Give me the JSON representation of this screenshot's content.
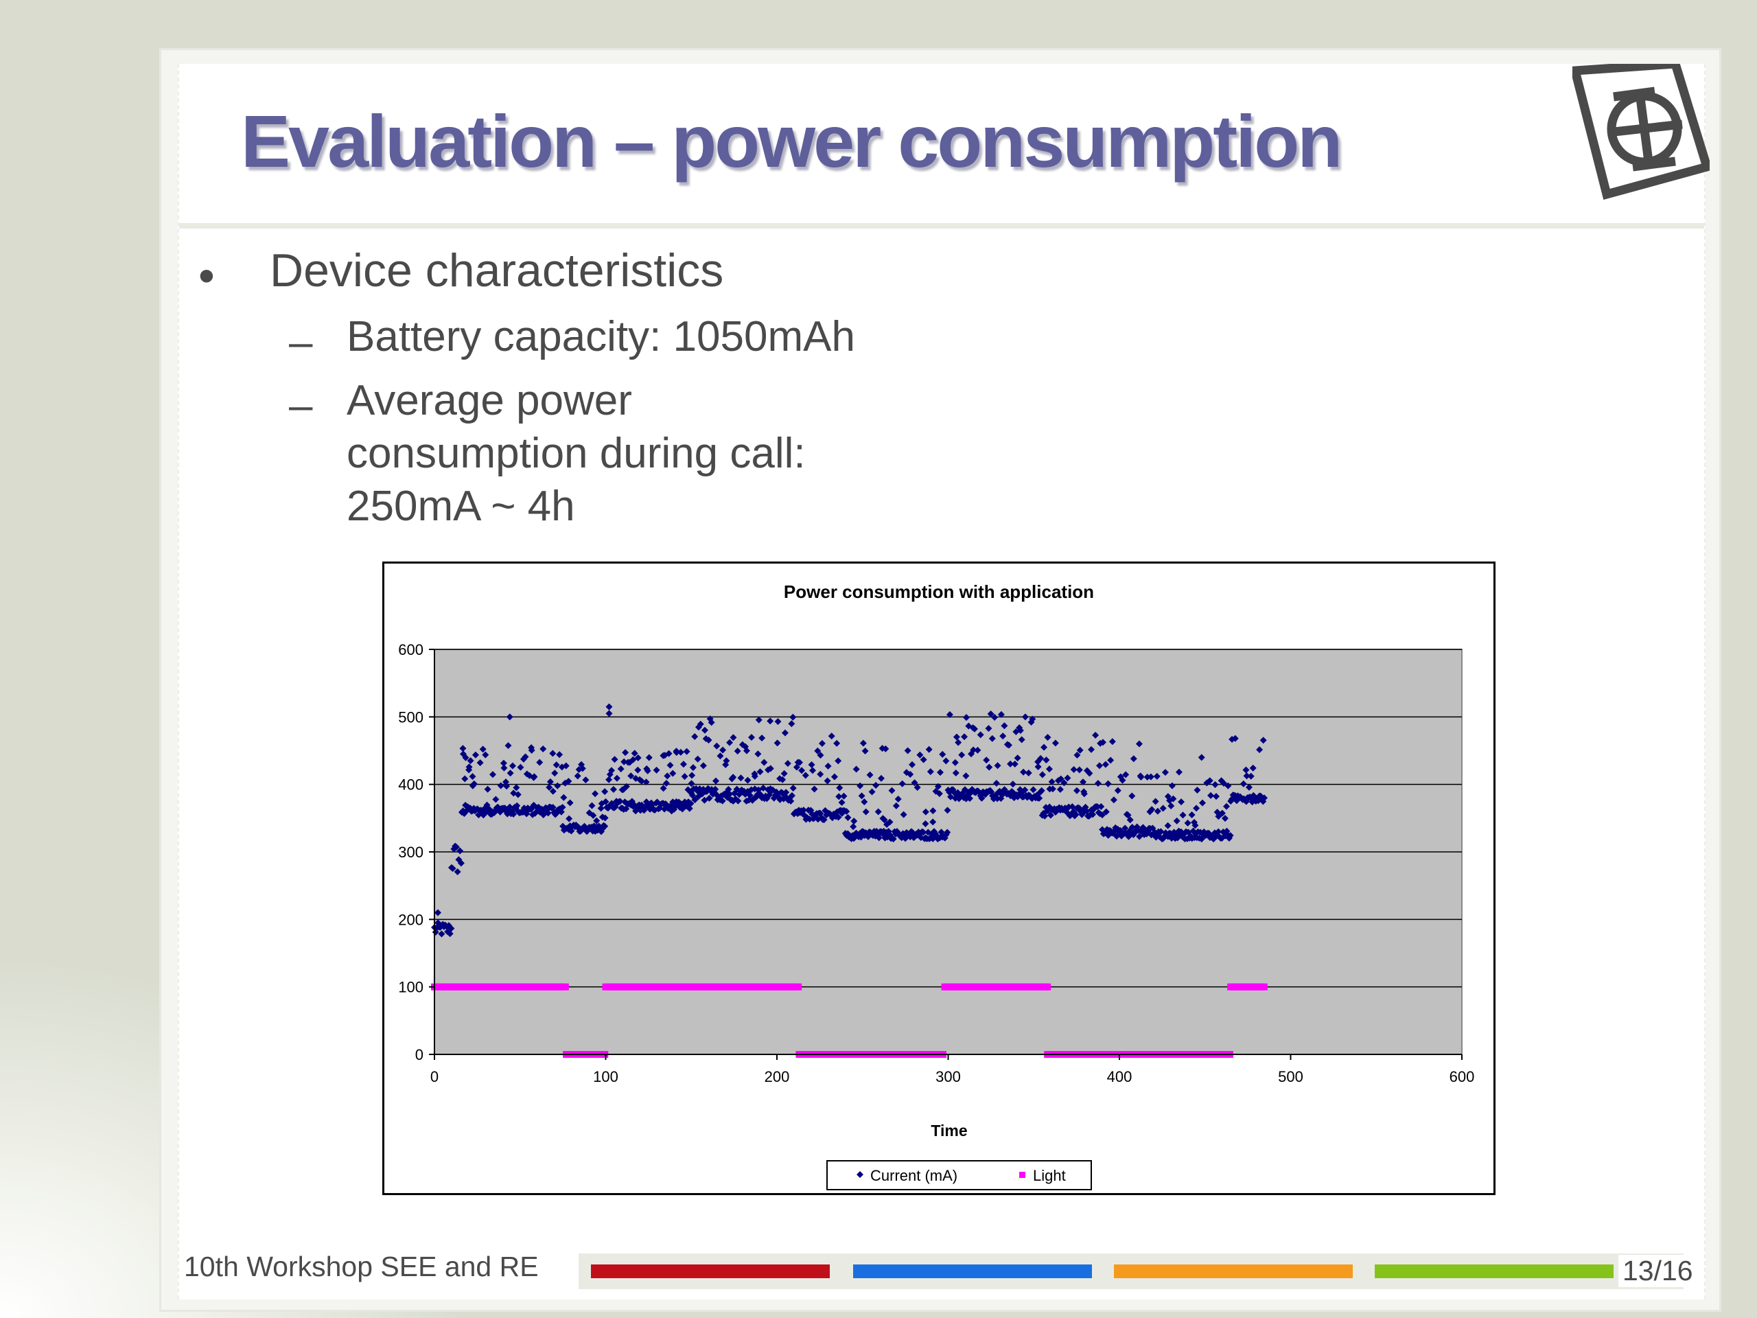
{
  "slide": {
    "title": "Evaluation – power consumption",
    "logo_icon": "institute-logo-icon",
    "bullets": {
      "level1": {
        "marker": "•",
        "text": "Device characteristics"
      },
      "items": [
        {
          "marker": "–",
          "lines": [
            "Battery capacity: 1050mAh"
          ]
        },
        {
          "marker": "–",
          "lines": [
            "Average power",
            "consumption during call:",
            "250mA ~ 4h"
          ]
        }
      ]
    },
    "footer": {
      "text": "10th Workshop SEE and RE",
      "page": "13/16",
      "stripe_colors": [
        "#c00f1b",
        "#1a6fe0",
        "#f59a1c",
        "#86c31a"
      ]
    }
  },
  "chart_data": {
    "type": "scatter",
    "title": "Power consumption with application",
    "xlabel": "Time",
    "ylabel": "",
    "xlim": [
      0,
      600
    ],
    "ylim": [
      0,
      600
    ],
    "xticks": [
      0,
      100,
      200,
      300,
      400,
      500,
      600
    ],
    "yticks": [
      0,
      100,
      200,
      300,
      400,
      500,
      600
    ],
    "grid": "horizontal",
    "plot_background": "#c0c0c0",
    "legend": {
      "placement": "bottom-center",
      "entries": [
        "Current (mA)",
        "Light"
      ]
    },
    "series": [
      {
        "name": "Current (mA)",
        "color": "#000080",
        "marker": "diamond",
        "segments": [
          {
            "x": [
              0,
              10
            ],
            "base": 185,
            "spread": 20
          },
          {
            "x": [
              10,
              16
            ],
            "base": 290,
            "spread": 50
          },
          {
            "x": [
              16,
              75
            ],
            "base": 362,
            "spread": 15,
            "upper": 460
          },
          {
            "x": [
              75,
              100
            ],
            "base": 335,
            "spread": 10,
            "upper": 430
          },
          {
            "x": [
              100,
              150
            ],
            "base": 368,
            "spread": 15,
            "upper": 450
          },
          {
            "x": [
              150,
              210
            ],
            "base": 385,
            "spread": 20,
            "upper": 500
          },
          {
            "x": [
              210,
              240
            ],
            "base": 355,
            "spread": 15,
            "upper": 480
          },
          {
            "x": [
              240,
              300
            ],
            "base": 325,
            "spread": 12,
            "upper": 465
          },
          {
            "x": [
              300,
              355
            ],
            "base": 385,
            "spread": 15,
            "upper": 505
          },
          {
            "x": [
              355,
              390
            ],
            "base": 360,
            "spread": 15,
            "upper": 480
          },
          {
            "x": [
              390,
              420
            ],
            "base": 330,
            "spread": 15,
            "upper": 470
          },
          {
            "x": [
              420,
              465
            ],
            "base": 325,
            "spread": 12,
            "upper": 420
          },
          {
            "x": [
              465,
              485
            ],
            "base": 380,
            "spread": 12,
            "upper": 470
          }
        ],
        "outliers": [
          [
            44,
            500
          ],
          [
            102,
            505
          ],
          [
            102,
            515
          ],
          [
            448,
            440
          ],
          [
            2,
            210
          ]
        ]
      },
      {
        "name": "Light",
        "color": "#ff00ff",
        "marker": "square",
        "segments": [
          {
            "x": [
              0,
              77
            ],
            "y": 100
          },
          {
            "x": [
              77,
              100
            ],
            "y": 0
          },
          {
            "x": [
              100,
              213
            ],
            "y": 100
          },
          {
            "x": [
              213,
              298
            ],
            "y": 0
          },
          {
            "x": [
              298,
              358
            ],
            "y": 100
          },
          {
            "x": [
              358,
              465
            ],
            "y": 0
          },
          {
            "x": [
              465,
              485
            ],
            "y": 100
          }
        ]
      }
    ]
  }
}
